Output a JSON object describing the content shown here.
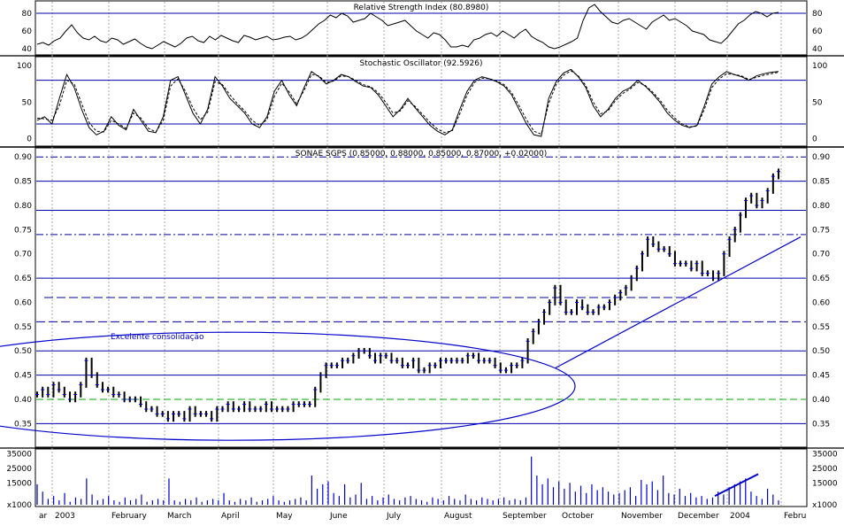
{
  "chart_data": {
    "type": "line",
    "x_labels": [
      "ar",
      "2003",
      "February",
      "March",
      "April",
      "May",
      "June",
      "July",
      "August",
      "September",
      "October",
      "November",
      "December",
      "2004",
      "Febru"
    ],
    "panels": [
      {
        "id": "rsi",
        "title": "Relative Strength Index (80.8980)",
        "ylim": [
          35,
          92
        ],
        "yticks": [
          "80",
          "60",
          "40"
        ],
        "ytick_values": [
          80,
          60,
          40
        ],
        "hlines": [
          80
        ],
        "values": [
          45,
          47,
          44,
          49,
          52,
          60,
          67,
          58,
          52,
          50,
          54,
          49,
          47,
          52,
          50,
          45,
          48,
          51,
          46,
          42,
          40,
          44,
          48,
          45,
          42,
          46,
          52,
          54,
          49,
          47,
          54,
          50,
          55,
          52,
          49,
          47,
          55,
          53,
          50,
          52,
          54,
          50,
          51,
          53,
          54,
          50,
          52,
          56,
          62,
          68,
          72,
          78,
          75,
          80,
          77,
          70,
          72,
          74,
          80,
          76,
          72,
          66,
          68,
          70,
          72,
          66,
          60,
          56,
          52,
          58,
          56,
          50,
          42,
          42,
          44,
          42,
          50,
          52,
          56,
          58,
          54,
          60,
          56,
          52,
          58,
          62,
          54,
          50,
          47,
          42,
          40,
          42,
          45,
          48,
          52,
          72,
          86,
          90,
          82,
          76,
          70,
          68,
          72,
          74,
          70,
          66,
          62,
          70,
          74,
          78,
          72,
          74,
          70,
          66,
          60,
          58,
          56,
          50,
          48,
          46,
          52,
          60,
          68,
          72,
          78,
          82,
          80,
          76,
          80,
          81
        ]
      },
      {
        "id": "stochastic",
        "title": "Stochastic Oscillator (92.5926)",
        "ylim": [
          -8,
          110
        ],
        "yticks": [
          "100",
          "50",
          "0"
        ],
        "ytick_values": [
          100,
          50,
          0
        ],
        "hlines": [
          80,
          20
        ],
        "series": [
          {
            "style": "solid",
            "values": [
              25,
              30,
              20,
              55,
              88,
              70,
              40,
              15,
              5,
              10,
              30,
              18,
              12,
              40,
              25,
              10,
              8,
              30,
              80,
              85,
              60,
              35,
              20,
              40,
              85,
              72,
              55,
              45,
              35,
              20,
              15,
              30,
              65,
              80,
              60,
              45,
              70,
              92,
              85,
              75,
              80,
              88,
              85,
              78,
              72,
              70,
              60,
              45,
              30,
              40,
              55,
              42,
              30,
              18,
              10,
              5,
              12,
              40,
              65,
              80,
              85,
              82,
              78,
              72,
              60,
              40,
              20,
              5,
              3,
              55,
              78,
              90,
              95,
              85,
              70,
              45,
              30,
              40,
              55,
              65,
              70,
              80,
              72,
              62,
              50,
              35,
              25,
              18,
              15,
              18,
              45,
              75,
              85,
              92,
              88,
              85,
              80,
              86,
              89,
              91,
              92
            ]
          },
          {
            "style": "dashed",
            "values": [
              28,
              27,
              25,
              45,
              80,
              75,
              48,
              22,
              10,
              9,
              25,
              20,
              14,
              35,
              28,
              14,
              9,
              25,
              72,
              82,
              65,
              42,
              26,
              36,
              78,
              74,
              60,
              48,
              38,
              25,
              18,
              26,
              58,
              76,
              64,
              48,
              66,
              88,
              86,
              77,
              79,
              86,
              85,
              80,
              74,
              71,
              63,
              50,
              35,
              38,
              52,
              44,
              33,
              22,
              13,
              8,
              11,
              34,
              60,
              77,
              83,
              82,
              79,
              74,
              63,
              45,
              26,
              10,
              6,
              48,
              74,
              87,
              93,
              86,
              73,
              50,
              34,
              38,
              52,
              62,
              68,
              77,
              73,
              64,
              53,
              39,
              28,
              20,
              16,
              17,
              40,
              70,
              82,
              89,
              88,
              86,
              81,
              84,
              87,
              89,
              91
            ]
          }
        ]
      },
      {
        "id": "price",
        "title": "SONAE SGPS (0.85000, 0.88000, 0.85000, 0.87000, +0.02000)",
        "ylim": [
          0.305,
          0.915
        ],
        "yticks": [
          "0.90",
          "0.85",
          "0.80",
          "0.75",
          "0.70",
          "0.65",
          "0.60",
          "0.55",
          "0.50",
          "0.45",
          "0.40",
          "0.35"
        ],
        "ytick_values": [
          0.9,
          0.85,
          0.8,
          0.75,
          0.7,
          0.65,
          0.6,
          0.55,
          0.5,
          0.45,
          0.4,
          0.35
        ],
        "annotation": "Excelente consolidação",
        "close": [
          0.41,
          0.42,
          0.41,
          0.43,
          0.42,
          0.41,
          0.4,
          0.41,
          0.43,
          0.48,
          0.45,
          0.43,
          0.42,
          0.42,
          0.41,
          0.41,
          0.4,
          0.4,
          0.4,
          0.39,
          0.38,
          0.38,
          0.37,
          0.37,
          0.36,
          0.37,
          0.37,
          0.36,
          0.38,
          0.37,
          0.37,
          0.37,
          0.36,
          0.38,
          0.38,
          0.39,
          0.38,
          0.38,
          0.39,
          0.38,
          0.38,
          0.38,
          0.39,
          0.38,
          0.38,
          0.38,
          0.38,
          0.39,
          0.39,
          0.39,
          0.39,
          0.42,
          0.45,
          0.47,
          0.47,
          0.47,
          0.48,
          0.48,
          0.49,
          0.5,
          0.5,
          0.49,
          0.48,
          0.49,
          0.49,
          0.48,
          0.48,
          0.47,
          0.47,
          0.48,
          0.46,
          0.46,
          0.47,
          0.47,
          0.48,
          0.48,
          0.48,
          0.48,
          0.48,
          0.49,
          0.49,
          0.48,
          0.48,
          0.48,
          0.47,
          0.46,
          0.46,
          0.47,
          0.47,
          0.48,
          0.52,
          0.54,
          0.56,
          0.58,
          0.6,
          0.63,
          0.6,
          0.58,
          0.58,
          0.6,
          0.59,
          0.58,
          0.58,
          0.59,
          0.59,
          0.6,
          0.61,
          0.62,
          0.63,
          0.65,
          0.67,
          0.7,
          0.73,
          0.72,
          0.71,
          0.71,
          0.7,
          0.68,
          0.68,
          0.68,
          0.67,
          0.68,
          0.66,
          0.66,
          0.65,
          0.66,
          0.7,
          0.73,
          0.75,
          0.78,
          0.81,
          0.82,
          0.8,
          0.81,
          0.83,
          0.86,
          0.87
        ]
      },
      {
        "id": "volume",
        "ylim": [
          0,
          37000
        ],
        "yticks": [
          "35000",
          "25000",
          "15000",
          "x1000"
        ],
        "ytick_values": [
          35000,
          25000,
          15000,
          0
        ],
        "values": [
          14000,
          9000,
          4000,
          6000,
          3000,
          8000,
          2000,
          5000,
          4000,
          18000,
          7000,
          3000,
          4000,
          6000,
          3000,
          2000,
          5000,
          3000,
          4000,
          7000,
          2000,
          3000,
          4000,
          3000,
          18000,
          3000,
          2000,
          4000,
          3000,
          5000,
          2000,
          3000,
          4000,
          3000,
          8000,
          3000,
          2000,
          4000,
          3000,
          5000,
          2000,
          3000,
          4000,
          6000,
          3000,
          2000,
          3000,
          4000,
          5000,
          3000,
          20000,
          11000,
          14000,
          16000,
          8000,
          6000,
          14000,
          5000,
          7000,
          15000,
          4000,
          6000,
          3000,
          5000,
          7000,
          4000,
          3000,
          5000,
          6000,
          4000,
          3000,
          2000,
          5000,
          4000,
          3000,
          6000,
          4000,
          3000,
          7000,
          4000,
          3000,
          5000,
          4000,
          3000,
          4000,
          5000,
          3000,
          4000,
          3000,
          5000,
          33000,
          20000,
          14000,
          18000,
          12000,
          16000,
          11000,
          15000,
          9000,
          13000,
          8000,
          14000,
          10000,
          12000,
          9000,
          7000,
          8000,
          10000,
          12000,
          6000,
          17000,
          14000,
          16000,
          10000,
          20000,
          8000,
          7000,
          11000,
          6000,
          8000,
          5000,
          6000,
          4000,
          5000,
          9000,
          7000,
          12000,
          14000,
          16000,
          18000,
          9000,
          6000,
          4000,
          11000,
          7000,
          3000
        ]
      }
    ]
  }
}
